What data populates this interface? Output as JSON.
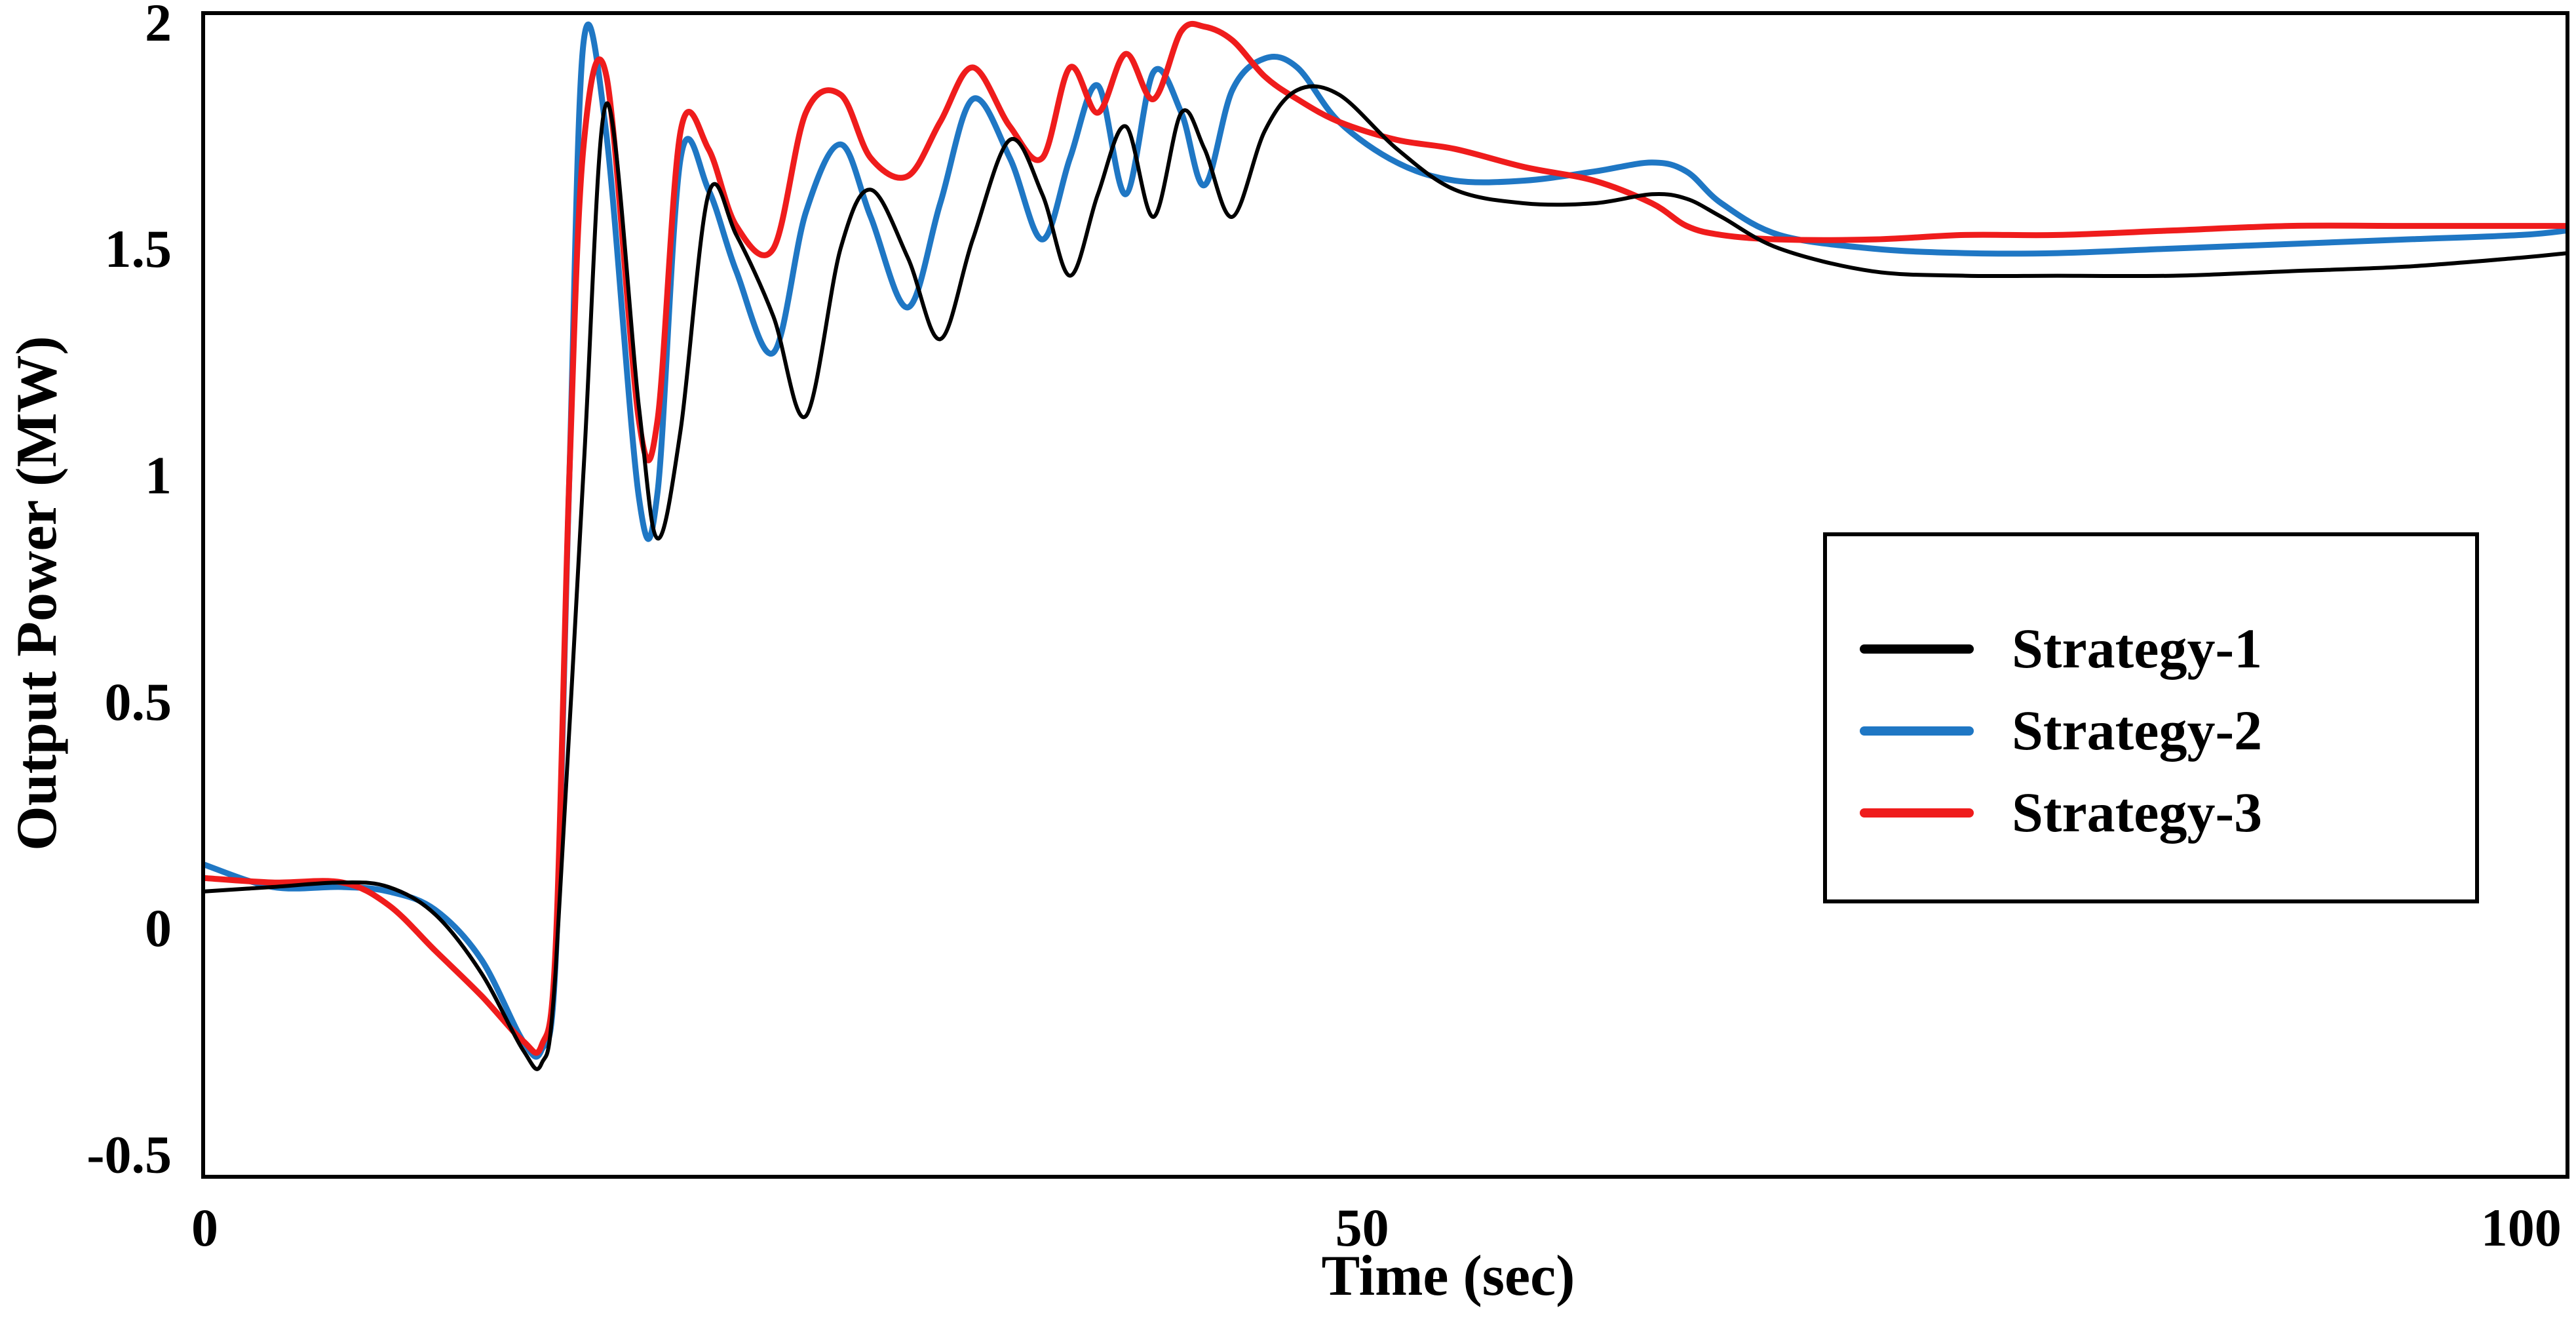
{
  "chart_data": {
    "type": "line",
    "title": "",
    "xlabel": "Time (sec)",
    "ylabel": "Output Power (MW)",
    "xlim": [
      0,
      102
    ],
    "ylim": [
      -0.55,
      2.02
    ],
    "grid": false,
    "legend_position": "right",
    "x_ticks": [
      {
        "value": 0,
        "label": "0"
      },
      {
        "value": 50,
        "label": "50"
      },
      {
        "value": 100,
        "label": "100"
      }
    ],
    "y_ticks": [
      {
        "value": -0.5,
        "label": "-0.5"
      },
      {
        "value": 0,
        "label": "0"
      },
      {
        "value": 0.5,
        "label": "0.5"
      },
      {
        "value": 1,
        "label": "1"
      },
      {
        "value": 1.5,
        "label": "1.5"
      },
      {
        "value": 2,
        "label": "2"
      }
    ],
    "series": [
      {
        "name": "Strategy-1",
        "color": "#000000",
        "x": [
          0,
          3,
          6,
          8,
          10,
          12,
          13.8,
          14.6,
          15.2,
          16.4,
          17.4,
          18.8,
          19.6,
          20.6,
          21.8,
          23,
          24.6,
          26,
          27.5,
          28.8,
          30.4,
          31.8,
          33.2,
          34.8,
          36.2,
          37.4,
          38.6,
          39.8,
          41,
          42.2,
          43.2,
          44.4,
          45.8,
          47.2,
          49,
          51.5,
          54,
          57,
          60,
          62.5,
          64,
          65.5,
          68,
          72,
          76,
          80,
          85,
          90,
          95,
          100,
          102
        ],
        "values": [
          0.08,
          0.09,
          0.1,
          0.09,
          0.03,
          -0.1,
          -0.27,
          -0.3,
          -0.1,
          1.0,
          1.82,
          1.15,
          0.86,
          1.1,
          1.62,
          1.53,
          1.35,
          1.13,
          1.5,
          1.63,
          1.48,
          1.3,
          1.52,
          1.74,
          1.62,
          1.44,
          1.62,
          1.77,
          1.57,
          1.8,
          1.72,
          1.57,
          1.76,
          1.85,
          1.84,
          1.72,
          1.63,
          1.6,
          1.6,
          1.62,
          1.61,
          1.57,
          1.5,
          1.45,
          1.44,
          1.44,
          1.44,
          1.45,
          1.46,
          1.48,
          1.49
        ]
      },
      {
        "name": "Strategy-2",
        "color": "#1f77c4",
        "x": [
          0,
          3,
          6,
          8,
          10,
          12,
          13.8,
          14.6,
          15.2,
          15.8,
          16.4,
          17.4,
          18.8,
          19.6,
          20.6,
          21.8,
          23,
          24.6,
          26,
          27.5,
          28.8,
          30.4,
          31.8,
          33.2,
          34.8,
          36.2,
          37.4,
          38.6,
          39.8,
          41,
          42.2,
          43.2,
          44.4,
          45.8,
          47.2,
          49,
          51.5,
          54,
          57,
          60,
          62.5,
          64,
          65.5,
          68,
          72,
          76,
          80,
          85,
          90,
          95,
          100,
          102
        ],
        "values": [
          0.14,
          0.09,
          0.09,
          0.08,
          0.04,
          -0.07,
          -0.25,
          -0.27,
          -0.08,
          1.0,
          1.95,
          1.75,
          0.95,
          0.96,
          1.7,
          1.63,
          1.45,
          1.27,
          1.58,
          1.73,
          1.57,
          1.37,
          1.6,
          1.83,
          1.7,
          1.52,
          1.7,
          1.86,
          1.62,
          1.89,
          1.8,
          1.64,
          1.85,
          1.92,
          1.9,
          1.78,
          1.69,
          1.65,
          1.65,
          1.67,
          1.69,
          1.67,
          1.6,
          1.53,
          1.5,
          1.49,
          1.49,
          1.5,
          1.51,
          1.52,
          1.53,
          1.54
        ]
      },
      {
        "name": "Strategy-3",
        "color": "#ef1c1c",
        "x": [
          0,
          3,
          6,
          8,
          10,
          12,
          13.8,
          14.6,
          15.2,
          15.8,
          16.4,
          17.4,
          18.8,
          19.6,
          20.6,
          21.8,
          23,
          24.6,
          26,
          27.5,
          28.8,
          30.4,
          31.8,
          33.2,
          34.8,
          36.2,
          37.4,
          38.6,
          39.8,
          41,
          42.2,
          43.2,
          44.4,
          45.8,
          47.2,
          49,
          51.5,
          54,
          57,
          60,
          62.5,
          64,
          65.5,
          68,
          72,
          76,
          80,
          85,
          90,
          95,
          100,
          102
        ],
        "values": [
          0.11,
          0.1,
          0.1,
          0.05,
          -0.05,
          -0.15,
          -0.25,
          -0.26,
          -0.05,
          1.0,
          1.72,
          1.88,
          1.12,
          1.12,
          1.76,
          1.72,
          1.55,
          1.5,
          1.8,
          1.84,
          1.7,
          1.66,
          1.78,
          1.9,
          1.77,
          1.7,
          1.9,
          1.8,
          1.93,
          1.83,
          1.98,
          1.99,
          1.96,
          1.88,
          1.83,
          1.78,
          1.74,
          1.72,
          1.68,
          1.65,
          1.6,
          1.55,
          1.53,
          1.52,
          1.52,
          1.53,
          1.53,
          1.54,
          1.55,
          1.55,
          1.55,
          1.55
        ]
      }
    ]
  }
}
